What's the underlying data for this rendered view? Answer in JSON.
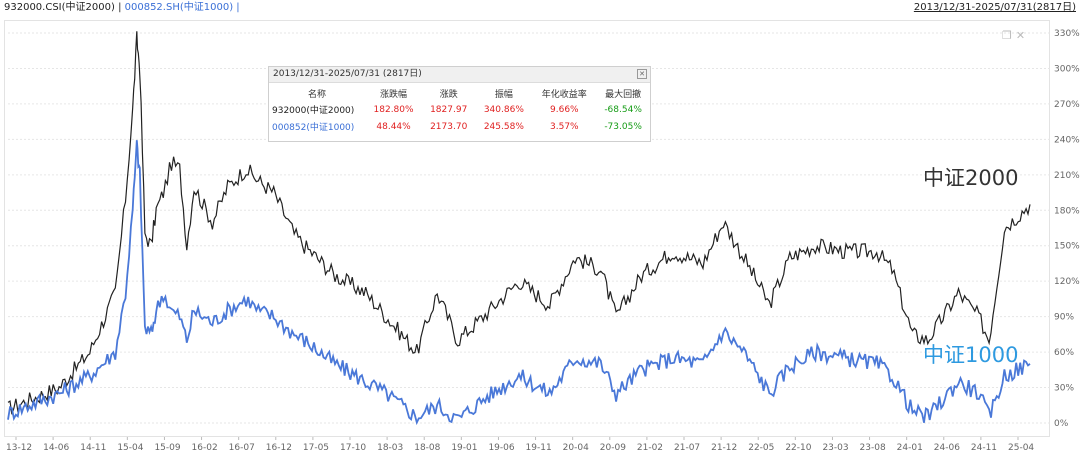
{
  "header": {
    "series_a": "932000.CSI(中证2000)",
    "separator": " | ",
    "series_b": "000852.SH(中证1000)",
    "series_b_suffix": " |",
    "range": "2013/12/31-2025/07/31(2817日)"
  },
  "icons": [
    "restore-icon",
    "close-icon"
  ],
  "colors": {
    "series_a": "#222222",
    "series_b": "#4a78d8",
    "up": "#e02020",
    "down": "#169c16"
  },
  "stats_panel": {
    "title": "2013/12/31-2025/07/31 (2817日)",
    "columns": [
      "名称",
      "涨跌幅",
      "涨跌",
      "振幅",
      "年化收益率",
      "最大回撤"
    ],
    "rows": [
      {
        "name": "932000(中证2000)",
        "change_pct": "182.80%",
        "change": "1827.97",
        "amplitude": "340.86%",
        "annual_return": "9.66%",
        "max_drawdown": "-68.54%"
      },
      {
        "name": "000852(中证1000)",
        "change_pct": "48.44%",
        "change": "2173.70",
        "amplitude": "245.58%",
        "annual_return": "3.57%",
        "max_drawdown": "-73.05%"
      }
    ]
  },
  "chart_data": {
    "type": "line",
    "title": "",
    "xlabel": "",
    "ylabel": "",
    "ylim": [
      0,
      330
    ],
    "y_ticks": [
      "0%",
      "30%",
      "60%",
      "90%",
      "120%",
      "150%",
      "180%",
      "210%",
      "240%",
      "270%",
      "300%",
      "330%"
    ],
    "x_ticks": [
      "13-12",
      "14-06",
      "14-11",
      "15-04",
      "15-09",
      "16-02",
      "16-07",
      "16-12",
      "17-05",
      "17-10",
      "18-03",
      "18-08",
      "19-01",
      "19-06",
      "19-11",
      "20-04",
      "20-09",
      "21-02",
      "21-07",
      "21-12",
      "22-05",
      "22-10",
      "23-03",
      "23-08",
      "24-01",
      "24-06",
      "24-11",
      "25-04"
    ],
    "grid": true,
    "series": [
      {
        "name": "中证2000",
        "color": "#222222",
        "x": [
          0,
          0.05,
          0.08,
          0.105,
          0.115,
          0.122,
          0.126,
          0.129,
          0.134,
          0.14,
          0.145,
          0.152,
          0.16,
          0.168,
          0.175,
          0.182,
          0.2,
          0.215,
          0.233,
          0.245,
          0.26,
          0.28,
          0.29,
          0.32,
          0.35,
          0.37,
          0.4,
          0.42,
          0.44,
          0.465,
          0.5,
          0.53,
          0.555,
          0.58,
          0.595,
          0.62,
          0.65,
          0.68,
          0.7,
          0.72,
          0.745,
          0.765,
          0.79,
          0.82,
          0.85,
          0.865,
          0.885,
          0.9,
          0.93,
          0.95,
          0.96,
          0.975,
          1.0
        ],
        "y": [
          12,
          30,
          60,
          110,
          190,
          265,
          325,
          300,
          160,
          150,
          180,
          195,
          220,
          215,
          150,
          200,
          170,
          200,
          215,
          205,
          195,
          160,
          150,
          125,
          110,
          90,
          60,
          110,
          70,
          90,
          120,
          100,
          140,
          130,
          90,
          125,
          145,
          135,
          170,
          140,
          100,
          140,
          150,
          145,
          145,
          130,
          75,
          70,
          110,
          90,
          70,
          165,
          185
        ]
      },
      {
        "name": "中证1000",
        "color": "#4a78d8",
        "x": [
          0,
          0.05,
          0.08,
          0.105,
          0.115,
          0.122,
          0.126,
          0.129,
          0.134,
          0.14,
          0.145,
          0.152,
          0.16,
          0.168,
          0.175,
          0.182,
          0.2,
          0.215,
          0.233,
          0.245,
          0.26,
          0.28,
          0.29,
          0.32,
          0.35,
          0.37,
          0.4,
          0.42,
          0.44,
          0.465,
          0.5,
          0.53,
          0.555,
          0.58,
          0.595,
          0.62,
          0.65,
          0.68,
          0.7,
          0.72,
          0.745,
          0.765,
          0.79,
          0.82,
          0.85,
          0.865,
          0.885,
          0.9,
          0.93,
          0.95,
          0.96,
          0.975,
          1.0
        ],
        "y": [
          8,
          25,
          40,
          60,
          110,
          180,
          235,
          210,
          80,
          75,
          95,
          110,
          95,
          90,
          70,
          95,
          85,
          95,
          105,
          95,
          90,
          75,
          70,
          50,
          35,
          25,
          5,
          15,
          3,
          20,
          40,
          25,
          55,
          50,
          25,
          45,
          55,
          50,
          78,
          60,
          25,
          48,
          60,
          55,
          50,
          40,
          10,
          5,
          35,
          25,
          5,
          40,
          50
        ]
      }
    ],
    "line_labels": [
      "中证2000",
      "中证1000"
    ]
  }
}
